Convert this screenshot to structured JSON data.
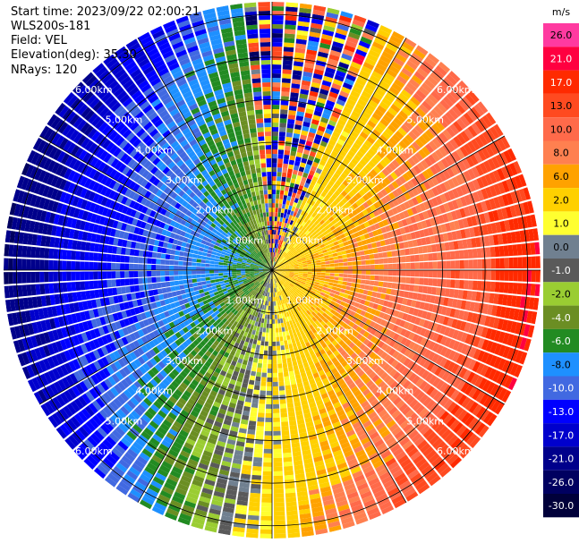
{
  "header": {
    "start_time": "Start time: 2023/09/22 02:00:21",
    "instrument": "WLS200s-181",
    "field": "Field: VEL",
    "elevation": "Elevation(deg): 35.30",
    "nrays": "NRays: 120"
  },
  "range_rings": [
    {
      "km": 1,
      "label": "1.00km"
    },
    {
      "km": 2,
      "label": "2.00km"
    },
    {
      "km": 3,
      "label": "3.00km"
    },
    {
      "km": 4,
      "label": "4.00km"
    },
    {
      "km": 5,
      "label": "5.00km"
    },
    {
      "km": 6,
      "label": "6.00km"
    }
  ],
  "n_rays": 120,
  "max_range_km": 6.3,
  "colorbar": {
    "unit": "m/s",
    "levels": [
      {
        "value": 26.0,
        "label": "26.0",
        "color": "#ff3aa0"
      },
      {
        "value": 21.0,
        "label": "21.0",
        "color": "#ff0040"
      },
      {
        "value": 17.0,
        "label": "17.0",
        "color": "#ff2a00"
      },
      {
        "value": 13.0,
        "label": "13.0",
        "color": "#ff4a20"
      },
      {
        "value": 10.0,
        "label": "10.0",
        "color": "#ff6a4a"
      },
      {
        "value": 8.0,
        "label": "8.0",
        "color": "#ff8050"
      },
      {
        "value": 6.0,
        "label": "6.0",
        "color": "#ffa200"
      },
      {
        "value": 2.0,
        "label": "2.0",
        "color": "#ffd000"
      },
      {
        "value": 1.0,
        "label": "1.0",
        "color": "#ffff30"
      },
      {
        "value": 0.0,
        "label": "0.0",
        "color": "#708090"
      },
      {
        "value": -1.0,
        "label": "-1.0",
        "color": "#5a5a5a"
      },
      {
        "value": -2.0,
        "label": "-2.0",
        "color": "#9acd32"
      },
      {
        "value": -4.0,
        "label": "-4.0",
        "color": "#6b8e23"
      },
      {
        "value": -6.0,
        "label": "-6.0",
        "color": "#228b22"
      },
      {
        "value": -8.0,
        "label": "-8.0",
        "color": "#1e90ff"
      },
      {
        "value": -10.0,
        "label": "-10.0",
        "color": "#4169e1"
      },
      {
        "value": -13.0,
        "label": "-13.0",
        "color": "#0000ff"
      },
      {
        "value": -17.0,
        "label": "-17.0",
        "color": "#0000cd"
      },
      {
        "value": -21.0,
        "label": "-21.0",
        "color": "#00008b"
      },
      {
        "value": -26.0,
        "label": "-26.0",
        "color": "#000060"
      },
      {
        "value": -30.0,
        "label": "-30.0",
        "color": "#00003a"
      }
    ]
  }
}
